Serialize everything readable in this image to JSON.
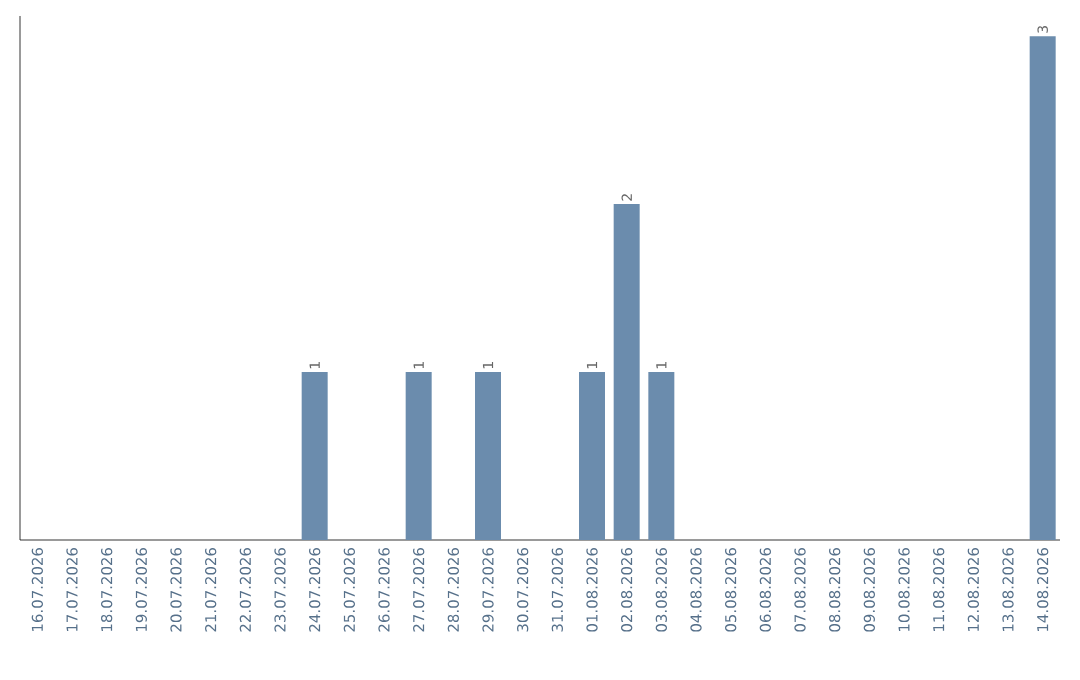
{
  "chart_data": {
    "type": "bar",
    "categories": [
      "16.07.2026",
      "17.07.2026",
      "18.07.2026",
      "19.07.2026",
      "20.07.2026",
      "21.07.2026",
      "22.07.2026",
      "23.07.2026",
      "24.07.2026",
      "25.07.2026",
      "26.07.2026",
      "27.07.2026",
      "28.07.2026",
      "29.07.2026",
      "30.07.2026",
      "31.07.2026",
      "01.08.2026",
      "02.08.2026",
      "03.08.2026",
      "04.08.2026",
      "05.08.2026",
      "06.08.2026",
      "07.08.2026",
      "08.08.2026",
      "09.08.2026",
      "10.08.2026",
      "11.08.2026",
      "12.08.2026",
      "13.08.2026",
      "14.08.2026"
    ],
    "values": [
      0,
      0,
      0,
      0,
      0,
      0,
      0,
      0,
      1,
      0,
      0,
      1,
      0,
      1,
      0,
      0,
      1,
      2,
      1,
      0,
      0,
      0,
      0,
      0,
      0,
      0,
      0,
      0,
      0,
      3
    ],
    "value_labels": [
      null,
      null,
      null,
      null,
      null,
      null,
      null,
      null,
      "1",
      null,
      null,
      "1",
      null,
      "1",
      null,
      null,
      "1",
      "2",
      "1",
      null,
      null,
      null,
      null,
      null,
      null,
      null,
      null,
      null,
      null,
      "3"
    ],
    "color": "#6b8cad"
  }
}
